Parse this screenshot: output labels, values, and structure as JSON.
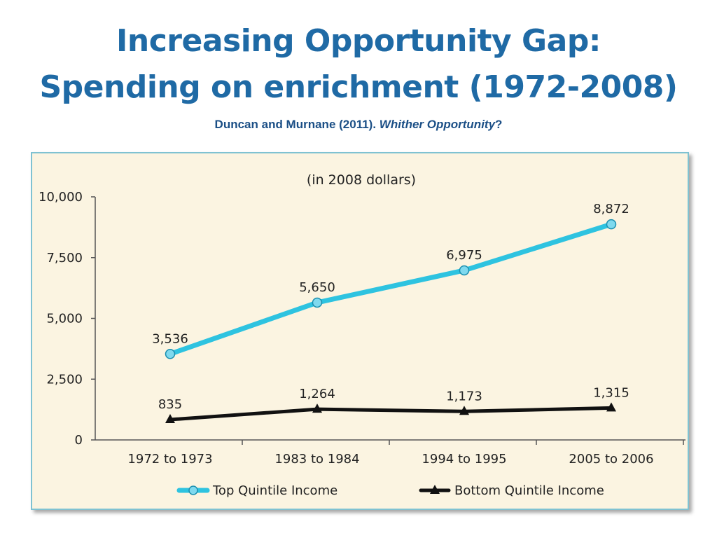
{
  "slide": {
    "title_line1": "Increasing Opportunity Gap:",
    "title_line2": "Spending on enrichment (1972-2008)",
    "citation": "Duncan and Murnane (2011). ",
    "citation_italic": "Whither Opportunity",
    "citation_end": "?"
  },
  "colors": {
    "title": "#1f6aa5",
    "top": "#2ec3e0",
    "bottom": "#111111",
    "panel": "#fbf4e1"
  },
  "chart_data": {
    "type": "line",
    "title": "(in 2008 dollars)",
    "categories": [
      "1972 to 1973",
      "1983 to 1984",
      "1994 to 1995",
      "2005 to 2006"
    ],
    "ylim": [
      0,
      10000
    ],
    "yticks": [
      0,
      2500,
      5000,
      7500,
      10000
    ],
    "ytick_labels": [
      "0",
      "2,500",
      "5,000",
      "7,500",
      "10,000"
    ],
    "series": [
      {
        "name": "Top Quintile Income",
        "marker": "circle",
        "color": "#2ec3e0",
        "values": [
          3536,
          5650,
          6975,
          8872
        ],
        "labels": [
          "3,536",
          "5,650",
          "6,975",
          "8,872"
        ]
      },
      {
        "name": "Bottom Quintile Income",
        "marker": "triangle",
        "color": "#111111",
        "values": [
          835,
          1264,
          1173,
          1315
        ],
        "labels": [
          "835",
          "1,264",
          "1,173",
          "1,315"
        ]
      }
    ],
    "legend_position": "bottom"
  }
}
